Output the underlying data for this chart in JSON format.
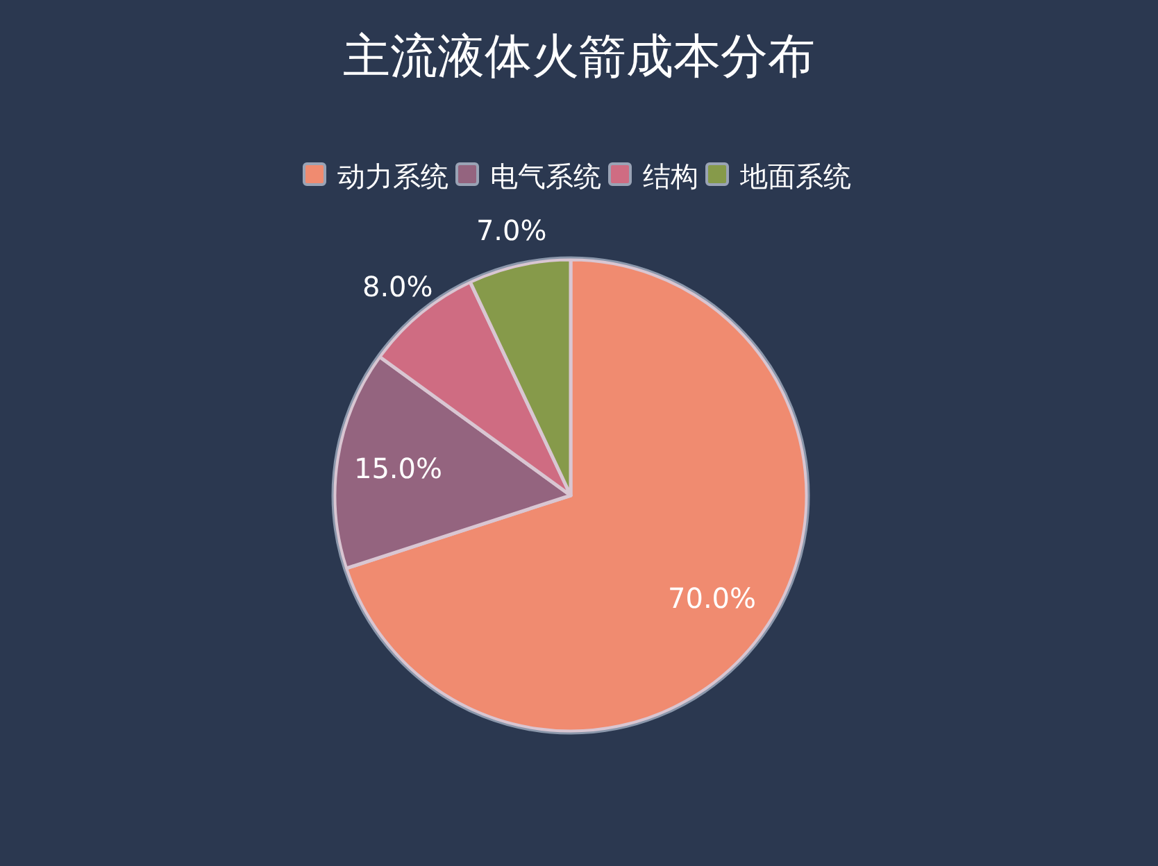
{
  "chart_data": {
    "type": "pie",
    "title": "主流液体火箭成本分布",
    "categories": [
      "动力系统",
      "电气系统",
      "结构",
      "地面系统"
    ],
    "values": [
      70,
      15,
      8,
      7
    ],
    "colors": [
      "#f08b70",
      "#94647f",
      "#cf6c82",
      "#869a4a"
    ],
    "value_labels": [
      "70.0%",
      "15.0%",
      "8.0%",
      "7.0%"
    ],
    "legend": "top"
  }
}
